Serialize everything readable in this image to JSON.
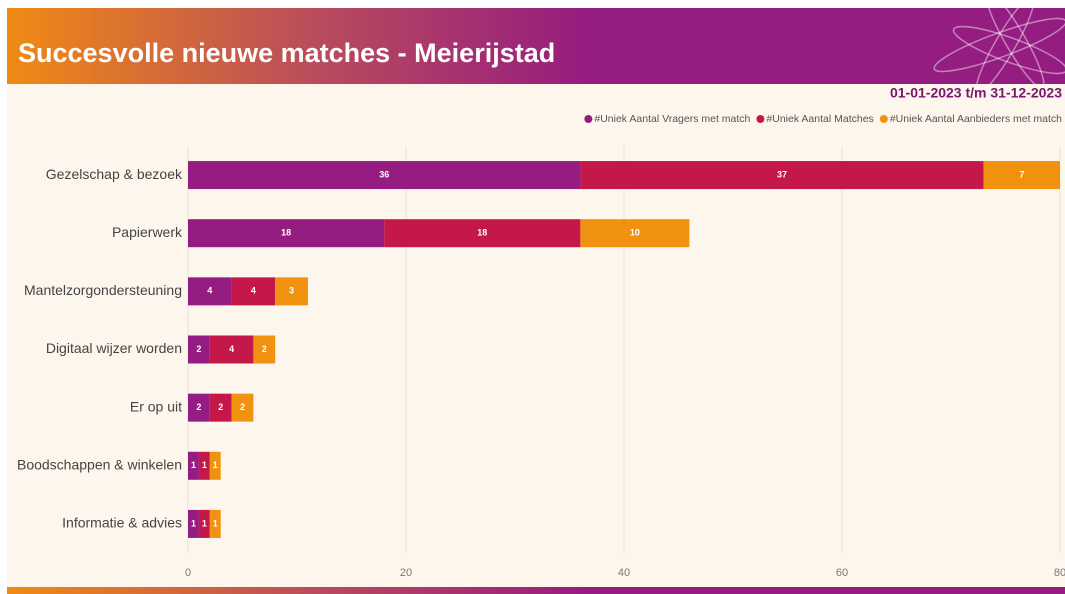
{
  "chart_data": {
    "type": "bar",
    "orientation": "horizontal",
    "stacked": true,
    "title": "Succesvolle nieuwe matches - Meierijstad",
    "subtitle": "01-01-2023 t/m 31-12-2023",
    "categories": [
      "Gezelschap & bezoek",
      "Papierwerk",
      "Mantelzorgondersteuning",
      "Digitaal wijzer worden",
      "Er op uit",
      "Boodschappen & winkelen",
      "Informatie & advies"
    ],
    "series": [
      {
        "name": "#Uniek Aantal Vragers met match",
        "color": "#951c80",
        "values": [
          36,
          18,
          4,
          2,
          2,
          1,
          1
        ]
      },
      {
        "name": "#Uniek Aantal Matches",
        "color": "#c4174a",
        "values": [
          37,
          18,
          4,
          4,
          2,
          1,
          1
        ]
      },
      {
        "name": "#Uniek Aantal Aanbieders met match",
        "color": "#f0920f",
        "values": [
          7,
          10,
          3,
          2,
          2,
          1,
          1
        ]
      }
    ],
    "xlim": [
      0,
      80
    ],
    "xticks": [
      0,
      20,
      40,
      60,
      80
    ],
    "grid": true
  }
}
